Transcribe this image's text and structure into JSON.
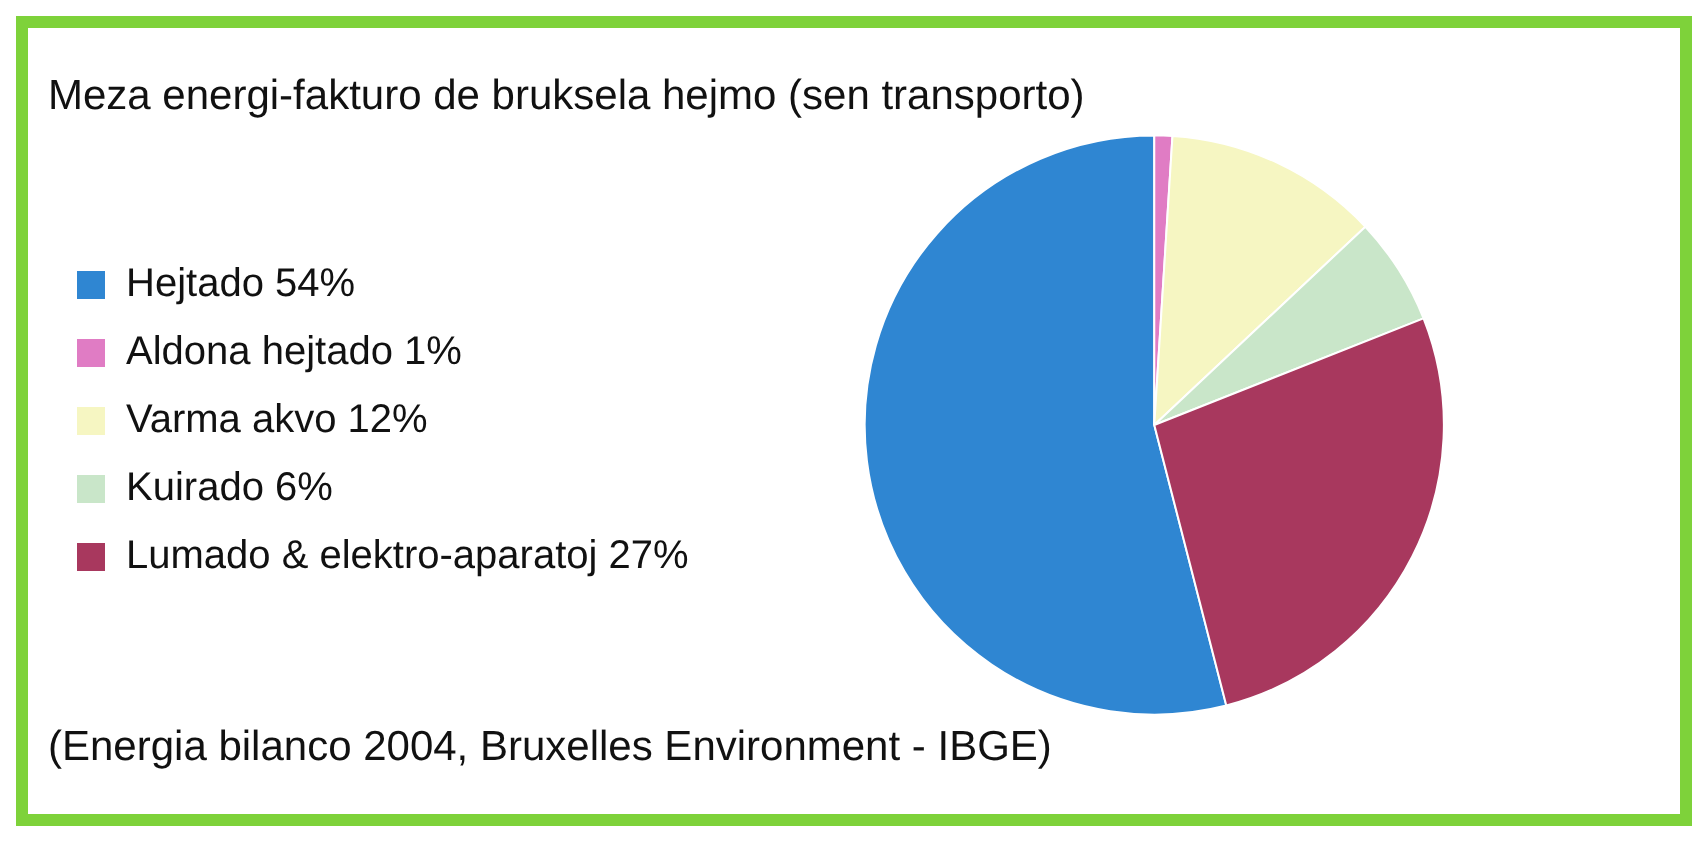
{
  "chart_data": {
    "type": "pie",
    "title": "Meza energi-fakturo de bruksela hejmo (sen transporto)",
    "categories": [
      "Hejtado 54%",
      "Aldona hejtado 1%",
      "Varma akvo 12%",
      "Kuirado 6%",
      "Lumado & elektro-aparatoj 27%"
    ],
    "values": [
      54,
      1,
      12,
      6,
      27
    ],
    "colors": [
      "#2f86d2",
      "#e07cc4",
      "#f6f6c2",
      "#c9e6c9",
      "#a8385e"
    ],
    "legend": "left",
    "annotations": [
      "(Energia bilanco 2004, Bruxelles Environment - IBGE)"
    ]
  }
}
